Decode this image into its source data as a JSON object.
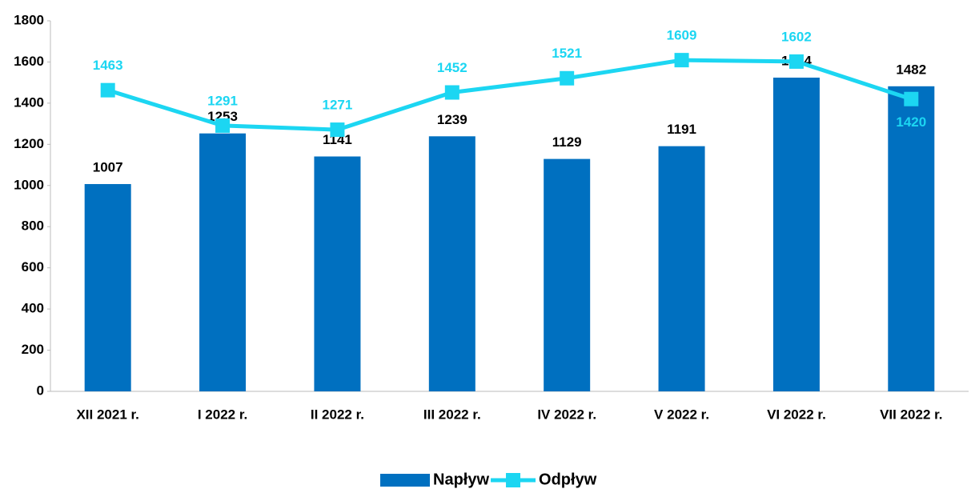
{
  "chart_data": {
    "type": "combo",
    "categories": [
      "XII 2021 r.",
      "I 2022 r.",
      "II 2022 r.",
      "III 2022 r.",
      "IV 2022 r.",
      "V 2022 r.",
      "VI 2022 r.",
      "VII 2022 r."
    ],
    "series": [
      {
        "name": "Napływ",
        "type": "bar",
        "color": "#0070c0",
        "values": [
          1007,
          1253,
          1141,
          1239,
          1129,
          1191,
          1524,
          1482
        ]
      },
      {
        "name": "Odpływ",
        "type": "line",
        "color": "#1cd6f2",
        "values": [
          1463,
          1291,
          1271,
          1452,
          1521,
          1609,
          1602,
          1420
        ]
      }
    ],
    "ylim": [
      0,
      1800
    ],
    "yticks": [
      0,
      200,
      400,
      600,
      800,
      1000,
      1200,
      1400,
      1600,
      1800
    ],
    "grid": false,
    "legend": "bottom"
  }
}
